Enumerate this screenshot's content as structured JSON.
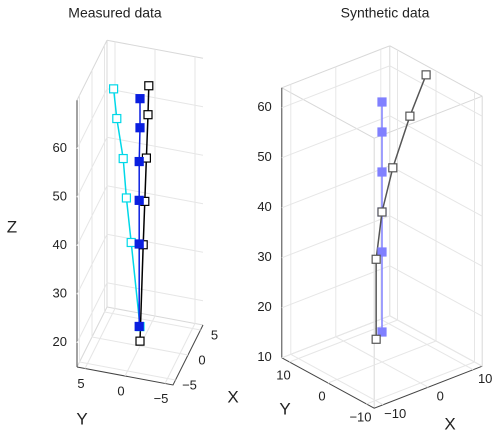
{
  "chart_data": [
    {
      "type": "line3d",
      "title": "Measured data",
      "xlabel": "X",
      "ylabel": "Y",
      "zlabel": "Z",
      "xlim": [
        -6,
        6
      ],
      "ylim": [
        -6,
        6
      ],
      "zlim": [
        15,
        70
      ],
      "xticks": [
        {
          "value": -5,
          "label": "−5"
        },
        0,
        5
      ],
      "yticks": [
        {
          "value": -5,
          "label": "−5"
        },
        0,
        5
      ],
      "zticks": [
        20,
        30,
        40,
        50,
        60
      ],
      "grid": true,
      "series": [
        {
          "color": "#00d8e8",
          "marker": "open",
          "x": [
            0,
            0,
            0,
            0,
            0,
            0
          ],
          "y": [
            0,
            1.1,
            1.7,
            2.1,
            2.9,
            3.3
          ],
          "z": [
            19,
            36,
            45,
            53,
            61,
            67
          ]
        },
        {
          "color": "#000000",
          "marker": "open",
          "x": [
            0,
            0,
            0,
            0,
            0,
            0
          ],
          "y": [
            0,
            -0.4,
            -0.6,
            -0.8,
            -1,
            -1.1
          ],
          "z": [
            16,
            36,
            45,
            54,
            63,
            69
          ]
        },
        {
          "color": "#0a1fe0",
          "marker": "filled",
          "x": [
            0,
            0,
            0,
            0,
            0,
            0
          ],
          "y": [
            0.1,
            0.1,
            0.1,
            0.1,
            0,
            0
          ],
          "z": [
            19,
            36,
            45,
            53,
            60,
            66
          ]
        }
      ]
    },
    {
      "type": "line3d",
      "title": "Synthetic data",
      "xlabel": "X",
      "ylabel": "Y",
      "xlim": [
        -12,
        12
      ],
      "ylim": [
        -12,
        12
      ],
      "zlim": [
        10,
        64
      ],
      "xticks": [
        {
          "value": -10,
          "label": "−10"
        },
        0,
        10
      ],
      "yticks": [
        {
          "value": -10,
          "label": "−10"
        },
        0,
        10
      ],
      "zticks": [
        10,
        20,
        30,
        40,
        50,
        60
      ],
      "grid": true,
      "series": [
        {
          "color": "#8080ff",
          "marker": "filled",
          "x": [
            0,
            0,
            0,
            0,
            0,
            0
          ],
          "y": [
            0,
            0,
            0,
            0,
            0,
            0
          ],
          "z": [
            16,
            32,
            40,
            48,
            56,
            62
          ]
        },
        {
          "color": "#555555",
          "marker": "open",
          "x": [
            -1.3,
            -1.3,
            0,
            2.4,
            6.2,
            9.8
          ],
          "y": [
            0,
            0,
            0,
            0,
            0,
            0
          ],
          "z": [
            15,
            31,
            40,
            48,
            57,
            64
          ]
        }
      ]
    }
  ]
}
